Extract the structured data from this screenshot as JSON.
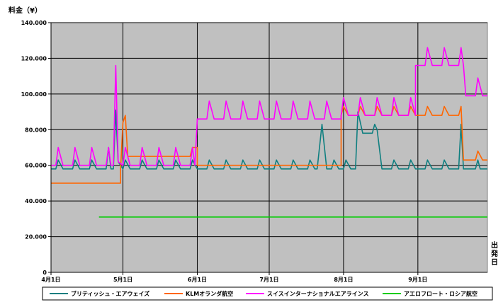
{
  "chart_data": {
    "type": "line",
    "ylabel": "料金（¥）",
    "xlabel": "出発日",
    "ylim": [
      0,
      140000
    ],
    "yticks": [
      0,
      20000,
      40000,
      60000,
      80000,
      100000,
      120000,
      140000
    ],
    "ytick_labels": [
      "0",
      "20.000",
      "40.000",
      "60.000",
      "80.000",
      "100.000",
      "120.000",
      "140.000"
    ],
    "xlim": [
      "2003-04-01",
      "2003-09-30"
    ],
    "xticks": [
      "2003-04-01",
      "2003-05-01",
      "2003-06-01",
      "2003-07-01",
      "2003-08-01",
      "2003-09-01"
    ],
    "xtick_labels": [
      "4月1日",
      "5月1日",
      "6月1日",
      "7月1日",
      "8月1日",
      "9月1日"
    ],
    "grid": true,
    "legend_position": "bottom",
    "series": [
      {
        "name": "ブリティッシュ・エアウェイズ",
        "color": "#0f7f80",
        "points": [
          [
            "2003-04-01",
            58000
          ],
          [
            "2003-04-03",
            58000
          ],
          [
            "2003-04-04",
            63000
          ],
          [
            "2003-04-06",
            58000
          ],
          [
            "2003-04-10",
            58000
          ],
          [
            "2003-04-11",
            63000
          ],
          [
            "2003-04-13",
            58000
          ],
          [
            "2003-04-17",
            58000
          ],
          [
            "2003-04-18",
            63000
          ],
          [
            "2003-04-20",
            58000
          ],
          [
            "2003-04-24",
            58000
          ],
          [
            "2003-04-25",
            70000
          ],
          [
            "2003-04-26",
            58000
          ],
          [
            "2003-04-27",
            58000
          ],
          [
            "2003-04-28",
            91000
          ],
          [
            "2003-04-29",
            62000
          ],
          [
            "2003-05-01",
            58000
          ],
          [
            "2003-05-02",
            63000
          ],
          [
            "2003-05-04",
            58000
          ],
          [
            "2003-05-08",
            58000
          ],
          [
            "2003-05-09",
            63000
          ],
          [
            "2003-05-11",
            58000
          ],
          [
            "2003-05-15",
            58000
          ],
          [
            "2003-05-16",
            63000
          ],
          [
            "2003-05-18",
            58000
          ],
          [
            "2003-05-22",
            58000
          ],
          [
            "2003-05-23",
            63000
          ],
          [
            "2003-05-25",
            58000
          ],
          [
            "2003-05-29",
            58000
          ],
          [
            "2003-05-30",
            63000
          ],
          [
            "2003-06-01",
            58000
          ],
          [
            "2003-06-05",
            58000
          ],
          [
            "2003-06-06",
            63000
          ],
          [
            "2003-06-08",
            58000
          ],
          [
            "2003-06-12",
            58000
          ],
          [
            "2003-06-13",
            63000
          ],
          [
            "2003-06-15",
            58000
          ],
          [
            "2003-06-19",
            58000
          ],
          [
            "2003-06-20",
            63000
          ],
          [
            "2003-06-22",
            58000
          ],
          [
            "2003-06-26",
            58000
          ],
          [
            "2003-06-27",
            63000
          ],
          [
            "2003-06-29",
            58000
          ],
          [
            "2003-07-03",
            58000
          ],
          [
            "2003-07-04",
            63000
          ],
          [
            "2003-07-06",
            58000
          ],
          [
            "2003-07-10",
            58000
          ],
          [
            "2003-07-11",
            63000
          ],
          [
            "2003-07-13",
            58000
          ],
          [
            "2003-07-17",
            58000
          ],
          [
            "2003-07-18",
            63000
          ],
          [
            "2003-07-20",
            58000
          ],
          [
            "2003-07-21",
            58000
          ],
          [
            "2003-07-23",
            83000
          ],
          [
            "2003-07-25",
            58000
          ],
          [
            "2003-07-27",
            58000
          ],
          [
            "2003-07-28",
            63000
          ],
          [
            "2003-07-30",
            58000
          ],
          [
            "2003-08-01",
            58000
          ],
          [
            "2003-08-02",
            63000
          ],
          [
            "2003-08-04",
            58000
          ],
          [
            "2003-08-06",
            58000
          ],
          [
            "2003-08-07",
            90000
          ],
          [
            "2003-08-09",
            78000
          ],
          [
            "2003-08-13",
            78000
          ],
          [
            "2003-08-14",
            83000
          ],
          [
            "2003-08-15",
            80000
          ],
          [
            "2003-08-17",
            58000
          ],
          [
            "2003-08-21",
            58000
          ],
          [
            "2003-08-22",
            63000
          ],
          [
            "2003-08-24",
            58000
          ],
          [
            "2003-08-28",
            58000
          ],
          [
            "2003-08-29",
            63000
          ],
          [
            "2003-08-31",
            58000
          ],
          [
            "2003-09-04",
            58000
          ],
          [
            "2003-09-05",
            63000
          ],
          [
            "2003-09-07",
            58000
          ],
          [
            "2003-09-11",
            58000
          ],
          [
            "2003-09-12",
            63000
          ],
          [
            "2003-09-14",
            58000
          ],
          [
            "2003-09-18",
            58000
          ],
          [
            "2003-09-19",
            83000
          ],
          [
            "2003-09-20",
            58000
          ],
          [
            "2003-09-25",
            58000
          ],
          [
            "2003-09-26",
            63000
          ],
          [
            "2003-09-27",
            58000
          ],
          [
            "2003-09-30",
            58000
          ]
        ]
      },
      {
        "name": "KLMオランダ航空",
        "color": "#ff6600",
        "points": [
          [
            "2003-04-01",
            50000
          ],
          [
            "2003-04-30",
            50000
          ],
          [
            "2003-04-30",
            58000
          ],
          [
            "2003-05-01",
            84000
          ],
          [
            "2003-05-02",
            88000
          ],
          [
            "2003-05-03",
            65000
          ],
          [
            "2003-05-29",
            65000
          ],
          [
            "2003-05-30",
            70000
          ],
          [
            "2003-06-01",
            70000
          ],
          [
            "2003-06-01",
            60000
          ],
          [
            "2003-07-31",
            60000
          ],
          [
            "2003-07-31",
            88000
          ],
          [
            "2003-08-01",
            93000
          ],
          [
            "2003-08-03",
            88000
          ],
          [
            "2003-08-07",
            88000
          ],
          [
            "2003-08-08",
            93000
          ],
          [
            "2003-08-10",
            88000
          ],
          [
            "2003-08-14",
            88000
          ],
          [
            "2003-08-15",
            93000
          ],
          [
            "2003-08-17",
            88000
          ],
          [
            "2003-08-21",
            88000
          ],
          [
            "2003-08-22",
            93000
          ],
          [
            "2003-08-24",
            88000
          ],
          [
            "2003-08-28",
            88000
          ],
          [
            "2003-08-29",
            93000
          ],
          [
            "2003-08-31",
            88000
          ],
          [
            "2003-09-04",
            88000
          ],
          [
            "2003-09-05",
            93000
          ],
          [
            "2003-09-07",
            88000
          ],
          [
            "2003-09-11",
            88000
          ],
          [
            "2003-09-12",
            93000
          ],
          [
            "2003-09-14",
            88000
          ],
          [
            "2003-09-18",
            88000
          ],
          [
            "2003-09-19",
            93000
          ],
          [
            "2003-09-20",
            63000
          ],
          [
            "2003-09-25",
            63000
          ],
          [
            "2003-09-26",
            68000
          ],
          [
            "2003-09-28",
            63000
          ],
          [
            "2003-09-30",
            63000
          ]
        ]
      },
      {
        "name": "スイスインターナショナルエアラインス",
        "color": "#ff00ff",
        "points": [
          [
            "2003-04-01",
            60000
          ],
          [
            "2003-04-03",
            60000
          ],
          [
            "2003-04-04",
            70000
          ],
          [
            "2003-04-06",
            60000
          ],
          [
            "2003-04-10",
            60000
          ],
          [
            "2003-04-11",
            70000
          ],
          [
            "2003-04-13",
            60000
          ],
          [
            "2003-04-17",
            60000
          ],
          [
            "2003-04-18",
            70000
          ],
          [
            "2003-04-20",
            60000
          ],
          [
            "2003-04-24",
            60000
          ],
          [
            "2003-04-25",
            70000
          ],
          [
            "2003-04-26",
            60000
          ],
          [
            "2003-04-27",
            60000
          ],
          [
            "2003-04-28",
            116000
          ],
          [
            "2003-04-29",
            62000
          ],
          [
            "2003-05-01",
            60000
          ],
          [
            "2003-05-02",
            70000
          ],
          [
            "2003-05-04",
            60000
          ],
          [
            "2003-05-08",
            60000
          ],
          [
            "2003-05-09",
            70000
          ],
          [
            "2003-05-11",
            60000
          ],
          [
            "2003-05-15",
            60000
          ],
          [
            "2003-05-16",
            70000
          ],
          [
            "2003-05-18",
            60000
          ],
          [
            "2003-05-22",
            60000
          ],
          [
            "2003-05-23",
            70000
          ],
          [
            "2003-05-25",
            60000
          ],
          [
            "2003-05-29",
            60000
          ],
          [
            "2003-05-30",
            70000
          ],
          [
            "2003-05-31",
            60000
          ],
          [
            "2003-06-01",
            86000
          ],
          [
            "2003-06-05",
            86000
          ],
          [
            "2003-06-06",
            96000
          ],
          [
            "2003-06-08",
            86000
          ],
          [
            "2003-06-12",
            86000
          ],
          [
            "2003-06-13",
            96000
          ],
          [
            "2003-06-15",
            86000
          ],
          [
            "2003-06-19",
            86000
          ],
          [
            "2003-06-20",
            96000
          ],
          [
            "2003-06-22",
            86000
          ],
          [
            "2003-06-26",
            86000
          ],
          [
            "2003-06-27",
            96000
          ],
          [
            "2003-06-29",
            86000
          ],
          [
            "2003-07-03",
            86000
          ],
          [
            "2003-07-04",
            96000
          ],
          [
            "2003-07-06",
            86000
          ],
          [
            "2003-07-10",
            86000
          ],
          [
            "2003-07-11",
            96000
          ],
          [
            "2003-07-13",
            86000
          ],
          [
            "2003-07-17",
            86000
          ],
          [
            "2003-07-18",
            96000
          ],
          [
            "2003-07-20",
            86000
          ],
          [
            "2003-07-24",
            86000
          ],
          [
            "2003-07-25",
            96000
          ],
          [
            "2003-07-27",
            86000
          ],
          [
            "2003-07-31",
            86000
          ],
          [
            "2003-07-31",
            88000
          ],
          [
            "2003-08-01",
            98000
          ],
          [
            "2003-08-03",
            88000
          ],
          [
            "2003-08-07",
            88000
          ],
          [
            "2003-08-08",
            98000
          ],
          [
            "2003-08-10",
            88000
          ],
          [
            "2003-08-14",
            88000
          ],
          [
            "2003-08-15",
            98000
          ],
          [
            "2003-08-17",
            88000
          ],
          [
            "2003-08-21",
            88000
          ],
          [
            "2003-08-22",
            98000
          ],
          [
            "2003-08-24",
            88000
          ],
          [
            "2003-08-28",
            88000
          ],
          [
            "2003-08-29",
            98000
          ],
          [
            "2003-08-31",
            88000
          ],
          [
            "2003-08-31",
            116000
          ],
          [
            "2003-09-04",
            116000
          ],
          [
            "2003-09-05",
            126000
          ],
          [
            "2003-09-07",
            116000
          ],
          [
            "2003-09-11",
            116000
          ],
          [
            "2003-09-12",
            126000
          ],
          [
            "2003-09-14",
            116000
          ],
          [
            "2003-09-18",
            116000
          ],
          [
            "2003-09-19",
            126000
          ],
          [
            "2003-09-20",
            116000
          ],
          [
            "2003-09-21",
            99000
          ],
          [
            "2003-09-25",
            99000
          ],
          [
            "2003-09-26",
            109000
          ],
          [
            "2003-09-28",
            99000
          ],
          [
            "2003-09-30",
            99000
          ]
        ]
      },
      {
        "name": "アエロフロート・ロシア航空",
        "color": "#00cc00",
        "points": [
          [
            "2003-04-21",
            31000
          ],
          [
            "2003-09-30",
            31000
          ]
        ]
      }
    ]
  }
}
